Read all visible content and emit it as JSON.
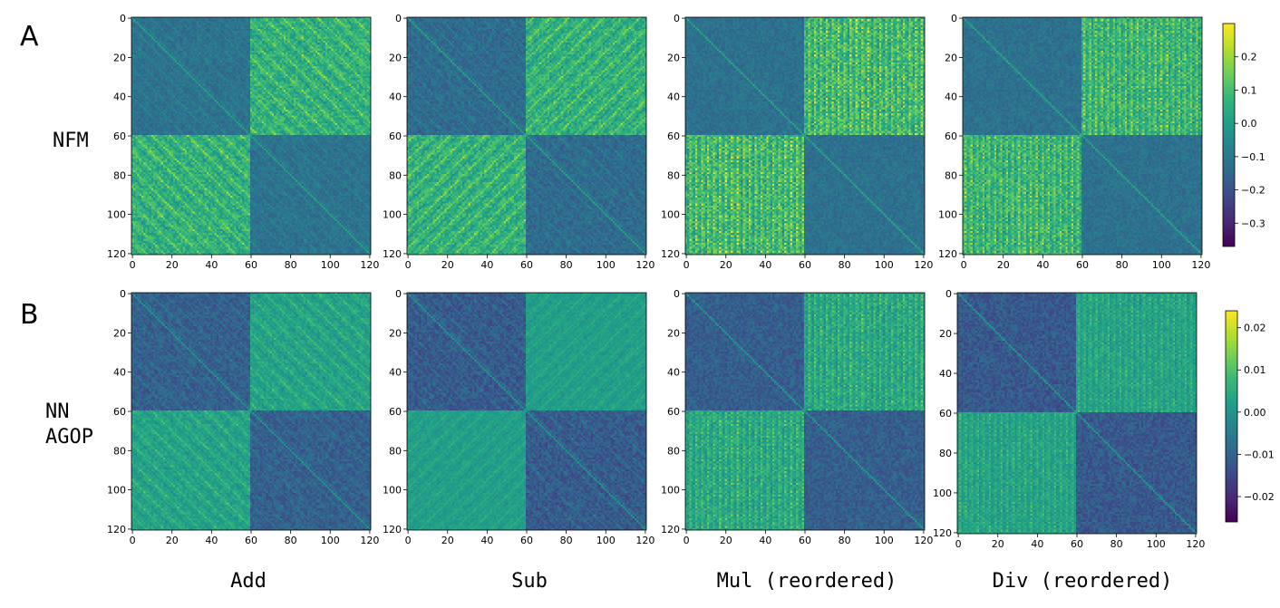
{
  "panel_labels": [
    "A",
    "B"
  ],
  "row_labels": [
    [
      "NFM"
    ],
    [
      "NN",
      "AGOP"
    ]
  ],
  "column_titles": [
    "Add",
    "Sub",
    "Mul (reordered)",
    "Div (reordered)"
  ],
  "colors": {
    "viridis": [
      "#440154",
      "#482878",
      "#3e4989",
      "#31688e",
      "#26828e",
      "#1f9e89",
      "#35b779",
      "#6ece58",
      "#b5de2b",
      "#fde725"
    ]
  },
  "chart_data": [
    {
      "type": "heatmap",
      "row": "NFM",
      "matrix_size": 121,
      "x_ticks": [
        0,
        20,
        40,
        60,
        80,
        100,
        120
      ],
      "y_ticks": [
        0,
        20,
        40,
        60,
        80,
        100,
        120
      ],
      "panels": [
        {
          "title": "Add",
          "pattern": "add",
          "diag_block_level": -0.12,
          "off_block_level": 0.06
        },
        {
          "title": "Sub",
          "pattern": "sub",
          "diag_block_level": -0.14,
          "off_block_level": 0.06
        },
        {
          "title": "Mul (reordered)",
          "pattern": "mul",
          "diag_block_level": -0.12,
          "off_block_level": 0.08
        },
        {
          "title": "Div (reordered)",
          "pattern": "div",
          "diag_block_level": -0.12,
          "off_block_level": 0.07
        }
      ],
      "colorbar": {
        "vmin": -0.37,
        "vmax": 0.3,
        "ticks": [
          0.2,
          0.1,
          0.0,
          -0.1,
          -0.2,
          -0.3
        ],
        "tick_labels": [
          "0.2",
          "0.1",
          "0.0",
          "−0.1",
          "−0.2",
          "−0.3"
        ]
      }
    },
    {
      "type": "heatmap",
      "row": "NN AGOP",
      "matrix_size": 121,
      "x_ticks": [
        0,
        20,
        40,
        60,
        80,
        100,
        120
      ],
      "y_ticks": [
        0,
        20,
        40,
        60,
        80,
        100,
        120
      ],
      "panels": [
        {
          "title": "Add",
          "pattern": "add",
          "diag_block_level": -0.011,
          "off_block_level": 0.003
        },
        {
          "title": "Sub",
          "pattern": "sub",
          "diag_block_level": -0.012,
          "off_block_level": 0.002
        },
        {
          "title": "Mul (reordered)",
          "pattern": "mul",
          "diag_block_level": -0.011,
          "off_block_level": 0.004
        },
        {
          "title": "Div (reordered)",
          "pattern": "div",
          "diag_block_level": -0.012,
          "off_block_level": 0.003
        }
      ],
      "colorbar": {
        "vmin": -0.026,
        "vmax": 0.024,
        "ticks": [
          0.02,
          0.01,
          0.0,
          -0.01,
          -0.02
        ],
        "tick_labels": [
          "0.02",
          "0.01",
          "0.00",
          "−0.01",
          "−0.02"
        ]
      }
    }
  ]
}
